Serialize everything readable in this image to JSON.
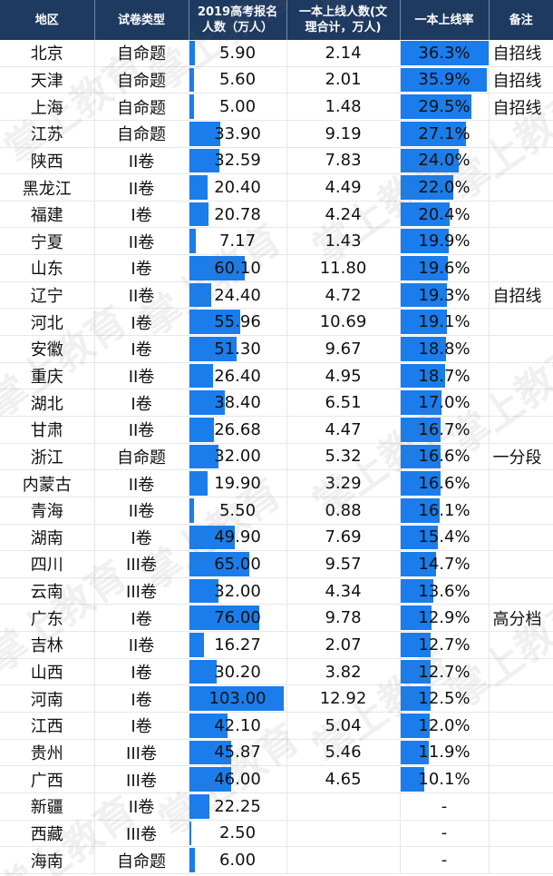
{
  "table": {
    "headers": {
      "region": "地区",
      "paper_type": "试卷类型",
      "applicants_line1": "2019高考报名",
      "applicants_line2": "人数（万人）",
      "first_tier_line1": "一本上线人数(文",
      "first_tier_line2": "理合计，万人)",
      "rate": "一本上线率",
      "note": "备注"
    },
    "rows": [
      {
        "region": "北京",
        "type": "自命题",
        "applicants": "5.90",
        "first_tier": "2.14",
        "rate": "36.3%",
        "note": "自招线"
      },
      {
        "region": "天津",
        "type": "自命题",
        "applicants": "5.60",
        "first_tier": "2.01",
        "rate": "35.9%",
        "note": "自招线"
      },
      {
        "region": "上海",
        "type": "自命题",
        "applicants": "5.00",
        "first_tier": "1.48",
        "rate": "29.5%",
        "note": "自招线"
      },
      {
        "region": "江苏",
        "type": "自命题",
        "applicants": "33.90",
        "first_tier": "9.19",
        "rate": "27.1%",
        "note": ""
      },
      {
        "region": "陕西",
        "type": "II卷",
        "applicants": "32.59",
        "first_tier": "7.83",
        "rate": "24.0%",
        "note": ""
      },
      {
        "region": "黑龙江",
        "type": "II卷",
        "applicants": "20.40",
        "first_tier": "4.49",
        "rate": "22.0%",
        "note": ""
      },
      {
        "region": "福建",
        "type": "I卷",
        "applicants": "20.78",
        "first_tier": "4.24",
        "rate": "20.4%",
        "note": ""
      },
      {
        "region": "宁夏",
        "type": "II卷",
        "applicants": "7.17",
        "first_tier": "1.43",
        "rate": "19.9%",
        "note": ""
      },
      {
        "region": "山东",
        "type": "I卷",
        "applicants": "60.10",
        "first_tier": "11.80",
        "rate": "19.6%",
        "note": ""
      },
      {
        "region": "辽宁",
        "type": "II卷",
        "applicants": "24.40",
        "first_tier": "4.72",
        "rate": "19.3%",
        "note": "自招线"
      },
      {
        "region": "河北",
        "type": "I卷",
        "applicants": "55.96",
        "first_tier": "10.69",
        "rate": "19.1%",
        "note": ""
      },
      {
        "region": "安徽",
        "type": "I卷",
        "applicants": "51.30",
        "first_tier": "9.67",
        "rate": "18.8%",
        "note": ""
      },
      {
        "region": "重庆",
        "type": "II卷",
        "applicants": "26.40",
        "first_tier": "4.95",
        "rate": "18.7%",
        "note": ""
      },
      {
        "region": "湖北",
        "type": "I卷",
        "applicants": "38.40",
        "first_tier": "6.51",
        "rate": "17.0%",
        "note": ""
      },
      {
        "region": "甘肃",
        "type": "II卷",
        "applicants": "26.68",
        "first_tier": "4.47",
        "rate": "16.7%",
        "note": ""
      },
      {
        "region": "浙江",
        "type": "自命题",
        "applicants": "32.00",
        "first_tier": "5.32",
        "rate": "16.6%",
        "note": "一分段"
      },
      {
        "region": "内蒙古",
        "type": "II卷",
        "applicants": "19.90",
        "first_tier": "3.29",
        "rate": "16.6%",
        "note": ""
      },
      {
        "region": "青海",
        "type": "II卷",
        "applicants": "5.50",
        "first_tier": "0.88",
        "rate": "16.1%",
        "note": ""
      },
      {
        "region": "湖南",
        "type": "I卷",
        "applicants": "49.90",
        "first_tier": "7.69",
        "rate": "15.4%",
        "note": ""
      },
      {
        "region": "四川",
        "type": "III卷",
        "applicants": "65.00",
        "first_tier": "9.57",
        "rate": "14.7%",
        "note": ""
      },
      {
        "region": "云南",
        "type": "III卷",
        "applicants": "32.00",
        "first_tier": "4.34",
        "rate": "13.6%",
        "note": ""
      },
      {
        "region": "广东",
        "type": "I卷",
        "applicants": "76.00",
        "first_tier": "9.78",
        "rate": "12.9%",
        "note": "高分档"
      },
      {
        "region": "吉林",
        "type": "II卷",
        "applicants": "16.27",
        "first_tier": "2.07",
        "rate": "12.7%",
        "note": ""
      },
      {
        "region": "山西",
        "type": "I卷",
        "applicants": "30.20",
        "first_tier": "3.82",
        "rate": "12.7%",
        "note": ""
      },
      {
        "region": "河南",
        "type": "I卷",
        "applicants": "103.00",
        "first_tier": "12.92",
        "rate": "12.5%",
        "note": ""
      },
      {
        "region": "江西",
        "type": "I卷",
        "applicants": "42.10",
        "first_tier": "5.04",
        "rate": "12.0%",
        "note": ""
      },
      {
        "region": "贵州",
        "type": "III卷",
        "applicants": "45.87",
        "first_tier": "5.46",
        "rate": "11.9%",
        "note": ""
      },
      {
        "region": "广西",
        "type": "III卷",
        "applicants": "46.00",
        "first_tier": "4.65",
        "rate": "10.1%",
        "note": ""
      },
      {
        "region": "新疆",
        "type": "II卷",
        "applicants": "22.25",
        "first_tier": "",
        "rate": "-",
        "note": ""
      },
      {
        "region": "西藏",
        "type": "III卷",
        "applicants": "2.50",
        "first_tier": "",
        "rate": "-",
        "note": ""
      },
      {
        "region": "海南",
        "type": "自命题",
        "applicants": "6.00",
        "first_tier": "",
        "rate": "-",
        "note": ""
      }
    ]
  },
  "watermark": "掌上教育",
  "colors": {
    "header_bg": "#1F3A60",
    "header_text": "#FFFFFF",
    "data_bar": "#1A7DEB"
  }
}
